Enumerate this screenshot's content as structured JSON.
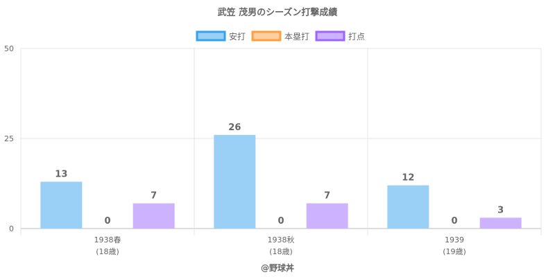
{
  "chart_data": {
    "type": "bar",
    "title": "武笠 茂男のシーズン打撃成績",
    "categories": [
      "1938春",
      "1938秋",
      "1939"
    ],
    "category_sublabels": [
      "(18歳)",
      "(18歳)",
      "(19歳)"
    ],
    "series": [
      {
        "name": "安打",
        "values": [
          13,
          26,
          12
        ],
        "fill": "#9ad0f5",
        "stroke": "#36a2eb"
      },
      {
        "name": "本塁打",
        "values": [
          0,
          0,
          0
        ],
        "fill": "#ffcf9f",
        "stroke": "#ff9f40"
      },
      {
        "name": "打点",
        "values": [
          7,
          7,
          3
        ],
        "fill": "#ccb2ff",
        "stroke": "#9966ff"
      }
    ],
    "yticks": [
      0,
      25,
      50
    ],
    "ylim": [
      0,
      50
    ],
    "grid": true,
    "legend_position": "top",
    "xlabel": "",
    "ylabel": ""
  },
  "credit": "@野球丼"
}
